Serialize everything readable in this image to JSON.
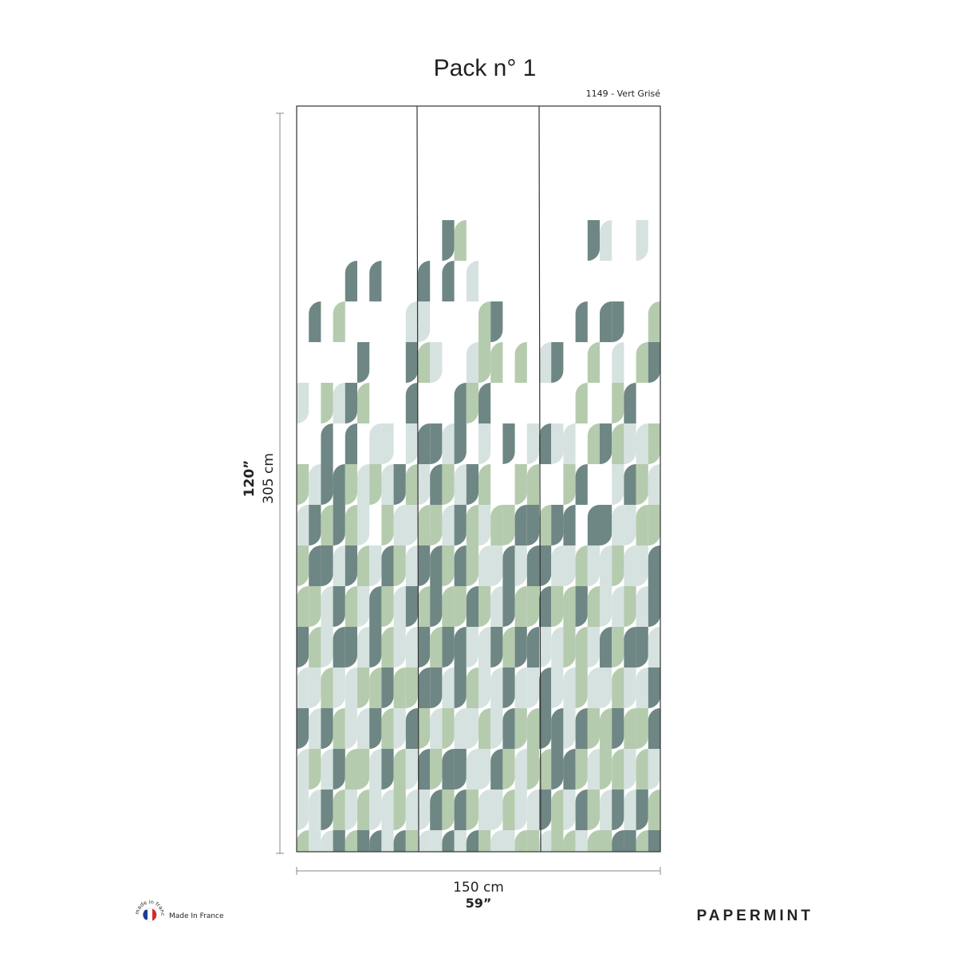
{
  "header": {
    "title": "Pack n° 1",
    "reference": "1149 - Vert Grisé"
  },
  "dimensions": {
    "height_in": "120”",
    "height_cm": "305 cm",
    "width_cm": "150 cm",
    "width_in": "59”"
  },
  "footer": {
    "badge_text": "made in france",
    "made_in": "Made In France",
    "brand": "PAPERMINT"
  }
}
